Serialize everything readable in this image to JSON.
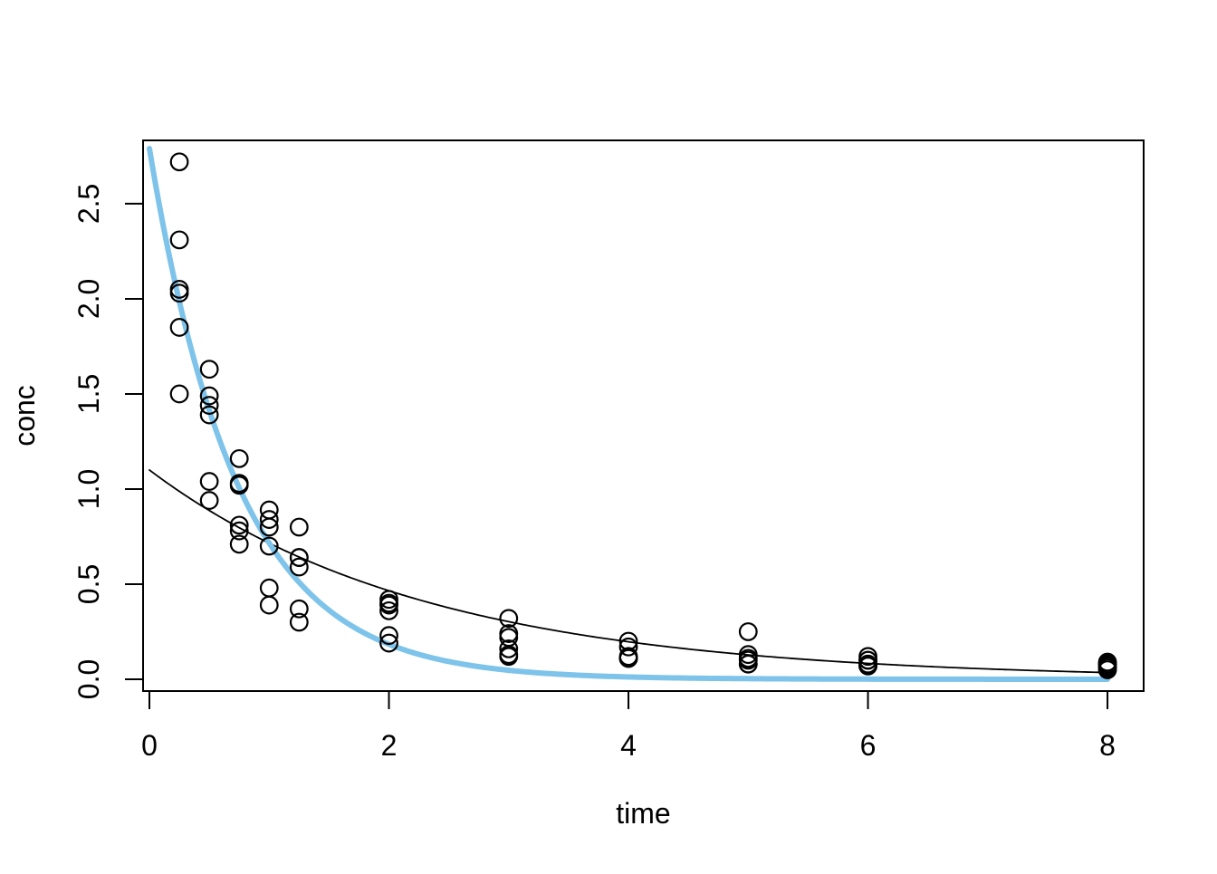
{
  "figure": {
    "background": "#ffffff",
    "description": "Base-R scatter plot of drug concentration versus time with two exponential decay fit curves"
  },
  "chart_data": {
    "type": "scatter",
    "title": "",
    "xlabel": "time",
    "ylabel": "conc",
    "grid": false,
    "legend": null,
    "xlim": [
      -0.053,
      8.302
    ],
    "ylim": [
      -0.062,
      2.833
    ],
    "x_ticks": [
      0,
      2,
      4,
      6,
      8
    ],
    "x_tick_labels": [
      "0",
      "2",
      "4",
      "6",
      "8"
    ],
    "y_ticks": [
      0.0,
      0.5,
      1.0,
      1.5,
      2.0,
      2.5
    ],
    "y_tick_labels": [
      "0.0",
      "0.5",
      "1.0",
      "1.5",
      "2.0",
      "2.5"
    ],
    "point_style": {
      "shape": "open-circle",
      "radius": 9.3,
      "stroke": "#000000",
      "stroke_width": 2.2
    },
    "points": [
      [
        0.25,
        1.5
      ],
      [
        0.5,
        0.94
      ],
      [
        0.75,
        0.78
      ],
      [
        1.0,
        0.48
      ],
      [
        1.25,
        0.37
      ],
      [
        2.0,
        0.19
      ],
      [
        3.0,
        0.12
      ],
      [
        4.0,
        0.11
      ],
      [
        5.0,
        0.08
      ],
      [
        6.0,
        0.07
      ],
      [
        8.0,
        0.05
      ],
      [
        0.25,
        2.03
      ],
      [
        0.5,
        1.63
      ],
      [
        0.75,
        0.71
      ],
      [
        1.0,
        0.7
      ],
      [
        1.25,
        0.64
      ],
      [
        2.0,
        0.36
      ],
      [
        3.0,
        0.32
      ],
      [
        4.0,
        0.2
      ],
      [
        5.0,
        0.25
      ],
      [
        6.0,
        0.12
      ],
      [
        8.0,
        0.08
      ],
      [
        0.25,
        2.72
      ],
      [
        0.5,
        1.49
      ],
      [
        0.75,
        1.16
      ],
      [
        1.0,
        0.8
      ],
      [
        1.25,
        0.8
      ],
      [
        2.0,
        0.39
      ],
      [
        3.0,
        0.22
      ],
      [
        4.0,
        0.12
      ],
      [
        5.0,
        0.11
      ],
      [
        6.0,
        0.08
      ],
      [
        8.0,
        0.08
      ],
      [
        0.25,
        1.85
      ],
      [
        0.5,
        1.39
      ],
      [
        0.75,
        1.02
      ],
      [
        1.0,
        0.89
      ],
      [
        1.25,
        0.59
      ],
      [
        2.0,
        0.4
      ],
      [
        3.0,
        0.16
      ],
      [
        4.0,
        0.11
      ],
      [
        5.0,
        0.1
      ],
      [
        6.0,
        0.07
      ],
      [
        8.0,
        0.07
      ],
      [
        0.25,
        2.05
      ],
      [
        0.5,
        1.04
      ],
      [
        0.75,
        0.81
      ],
      [
        1.0,
        0.39
      ],
      [
        1.25,
        0.3
      ],
      [
        2.0,
        0.23
      ],
      [
        3.0,
        0.13
      ],
      [
        4.0,
        0.11
      ],
      [
        5.0,
        0.08
      ],
      [
        6.0,
        0.1
      ],
      [
        8.0,
        0.06
      ],
      [
        0.25,
        2.31
      ],
      [
        0.5,
        1.44
      ],
      [
        0.75,
        1.03
      ],
      [
        1.0,
        0.84
      ],
      [
        1.25,
        0.64
      ],
      [
        2.0,
        0.42
      ],
      [
        3.0,
        0.24
      ],
      [
        4.0,
        0.17
      ],
      [
        5.0,
        0.13
      ],
      [
        6.0,
        0.1
      ],
      [
        8.0,
        0.09
      ]
    ],
    "curves": [
      {
        "name": "fit-curve-black",
        "model": "A*exp(-k*t)",
        "A": 1.1,
        "k": 0.43,
        "t_from": 0,
        "t_to": 8,
        "color": "#000000",
        "width": 1.8
      },
      {
        "name": "fit-curve-blue",
        "model": "A*exp(-k*t)",
        "A": 2.79,
        "k": 1.36,
        "t_from": 0,
        "t_to": 8,
        "color": "#7DC3EA",
        "width": 6
      }
    ],
    "colors": {
      "points": "#000000",
      "axis": "#000000",
      "curve_thin": "#000000",
      "curve_thick": "#7DC3EA"
    }
  }
}
